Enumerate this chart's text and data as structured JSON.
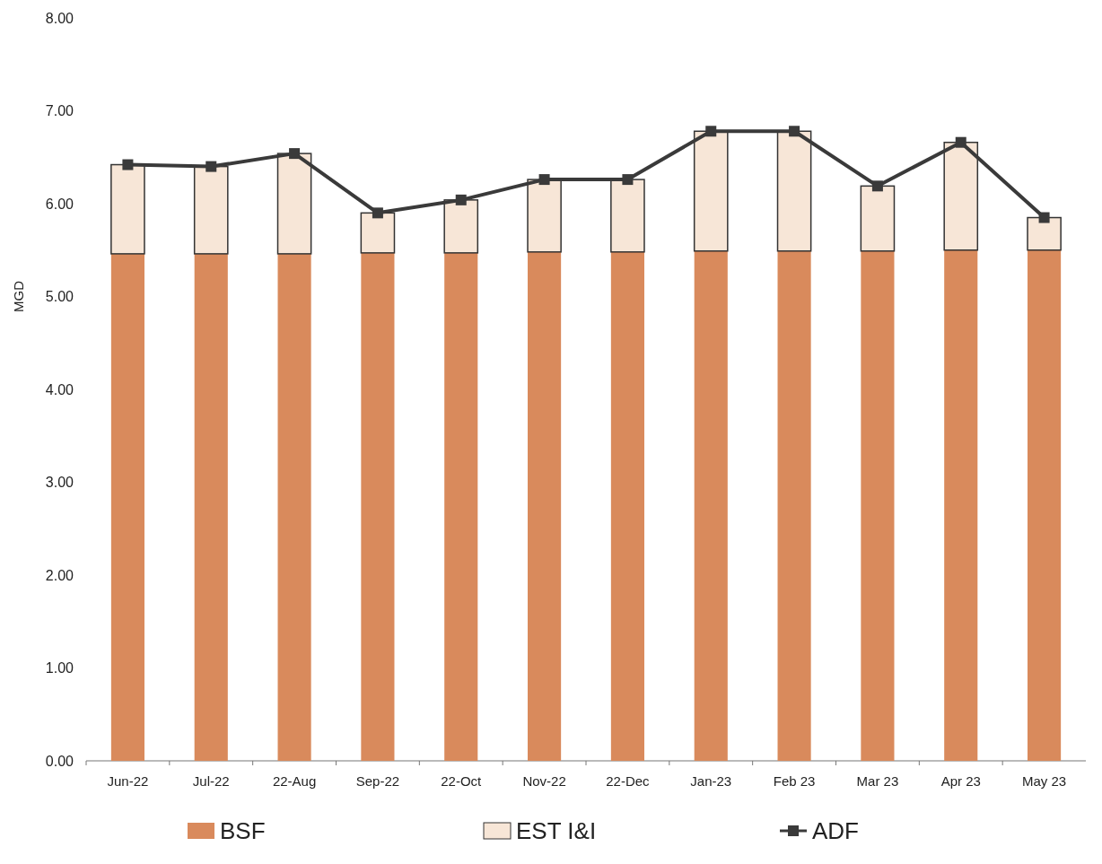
{
  "chart_data": {
    "type": "bar",
    "stacked": true,
    "ylabel": "MGD",
    "categories": [
      "Jun-22",
      "Jul-22",
      "22-Aug",
      "Sep-22",
      "22-Oct",
      "Nov-22",
      "22-Dec",
      "Jan-23",
      "Feb 23",
      "Mar 23",
      "Apr 23",
      "May 23"
    ],
    "ylim": [
      0,
      8
    ],
    "yticks": [
      {
        "value": 0,
        "label": "0.00"
      },
      {
        "value": 1,
        "label": "1.00"
      },
      {
        "value": 2,
        "label": "2.00"
      },
      {
        "value": 3,
        "label": "3.00"
      },
      {
        "value": 4,
        "label": "4.00"
      },
      {
        "value": 5,
        "label": "5.00"
      },
      {
        "value": 6,
        "label": "6.00"
      },
      {
        "value": 7,
        "label": "7.00"
      },
      {
        "value": 8,
        "label": "8.00"
      }
    ],
    "grid": false,
    "legend": "bottom",
    "marker": "square",
    "line_style": "solid",
    "series": [
      {
        "name": "BSF",
        "color": "#d98a5c",
        "values": [
          5.46,
          5.46,
          5.46,
          5.47,
          5.47,
          5.48,
          5.48,
          5.49,
          5.49,
          5.49,
          5.5,
          5.5
        ]
      },
      {
        "name": "EST I&I",
        "color": "#f7e6d7",
        "values": [
          0.96,
          0.94,
          1.08,
          0.43,
          0.57,
          0.78,
          0.78,
          1.29,
          1.29,
          0.7,
          1.16,
          0.35
        ]
      },
      {
        "name": "ADF",
        "type": "line",
        "color": "#3a3a3a",
        "values": [
          6.42,
          6.4,
          6.54,
          5.9,
          6.04,
          6.26,
          6.26,
          6.78,
          6.78,
          6.19,
          6.66,
          5.85
        ]
      }
    ]
  }
}
